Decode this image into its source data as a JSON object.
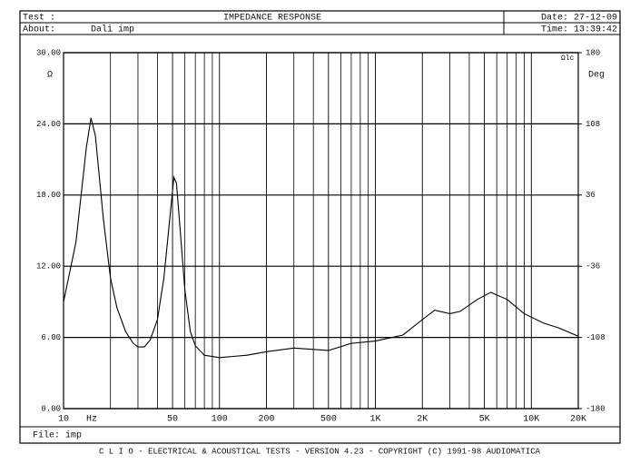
{
  "header": {
    "test_label": "Test :",
    "about_label": "About:",
    "about_value": "Dali imp",
    "date": "Date: 27-12-09",
    "time": "Time: 13:39:42"
  },
  "footer": {
    "file": "File:  imp",
    "banner": "C L I O  -  ELECTRICAL & ACOUSTICAL TESTS  -  VERSION 4.23  -  COPYRIGHT (C) 1991-98 AUDIOMATICA"
  },
  "chart_data": {
    "type": "line",
    "title": "IMPEDANCE RESPONSE",
    "ylabel": "Ω",
    "y2label": "Deg",
    "corner_note": "Ωlc",
    "x_unit": "Hz",
    "x": [
      10,
      12,
      14,
      15,
      16,
      18,
      20,
      22,
      25,
      28,
      30,
      33,
      36,
      40,
      44,
      48,
      51,
      53,
      56,
      60,
      65,
      70,
      80,
      100,
      150,
      200,
      300,
      500,
      700,
      1000,
      1500,
      2000,
      2400,
      3000,
      3500,
      4500,
      5500,
      7000,
      9000,
      12000,
      15000,
      20000
    ],
    "values": [
      9.0,
      14,
      22,
      24.5,
      23,
      16,
      11,
      8.5,
      6.5,
      5.5,
      5.2,
      5.2,
      5.8,
      7.5,
      11,
      16,
      19.5,
      19,
      15,
      10,
      6.5,
      5.3,
      4.5,
      4.3,
      4.5,
      4.8,
      5.1,
      4.9,
      5.5,
      5.7,
      6.2,
      7.5,
      8.3,
      8.0,
      8.2,
      9.2,
      9.8,
      9.2,
      8.0,
      7.2,
      6.8,
      6.1
    ],
    "color": "#000000",
    "xscale": "log",
    "xlim": [
      10,
      20000
    ],
    "xticks": [
      10,
      50,
      100,
      200,
      500,
      {
        "value": 1000,
        "label": "1K"
      },
      {
        "value": 2000,
        "label": "2K"
      },
      {
        "value": 5000,
        "label": "5K"
      },
      {
        "value": 10000,
        "label": "10K"
      },
      {
        "value": 20000,
        "label": "20K"
      }
    ],
    "xminor": [
      20,
      30,
      40,
      60,
      70,
      80,
      90,
      300,
      400,
      600,
      700,
      800,
      900,
      3000,
      4000,
      6000,
      7000,
      8000,
      9000
    ],
    "ylim": [
      0,
      30
    ],
    "yticks": [
      {
        "value": 0,
        "label": "0.00"
      },
      {
        "value": 6,
        "label": "6.00"
      },
      {
        "value": 12,
        "label": "12.00"
      },
      {
        "value": 18,
        "label": "18.00"
      },
      {
        "value": 24,
        "label": "24.00"
      },
      {
        "value": 30,
        "label": "30.00"
      }
    ],
    "y2lim": [
      -180,
      180
    ],
    "y2ticks": [
      -180,
      -108,
      -36,
      36,
      108,
      180
    ],
    "grid": true
  }
}
